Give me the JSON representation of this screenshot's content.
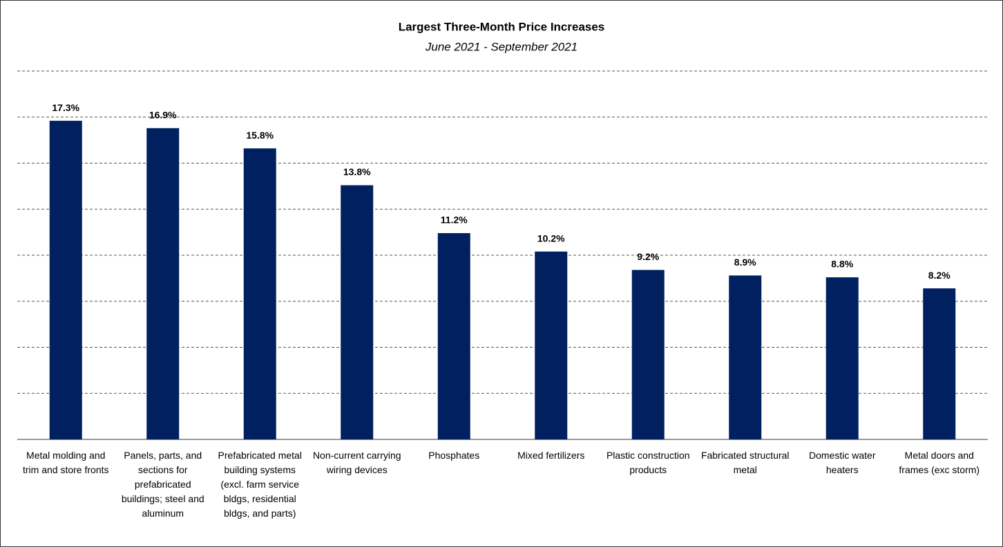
{
  "chart_data": {
    "type": "bar",
    "title": "Largest Three-Month Price Increases",
    "subtitle": "June 2021 - September 2021",
    "categories": [
      "Metal molding and trim and store fronts",
      "Panels, parts, and sections for prefabricated buildings; steel and aluminum",
      "Prefabricated metal building systems (excl. farm service bldgs, residential bldgs, and parts)",
      "Non-current carrying wiring devices",
      "Phosphates",
      "Mixed fertilizers",
      "Plastic construction products",
      "Fabricated structural metal",
      "Domestic water heaters",
      "Metal doors and frames (exc storm)"
    ],
    "values": [
      17.3,
      16.9,
      15.8,
      13.8,
      11.2,
      10.2,
      9.2,
      8.9,
      8.8,
      8.2
    ],
    "value_labels": [
      "17.3%",
      "16.9%",
      "15.8%",
      "13.8%",
      "11.2%",
      "10.2%",
      "9.2%",
      "8.9%",
      "8.8%",
      "8.2%"
    ],
    "color": "#002060",
    "ylim": [
      0,
      20
    ],
    "yticks": [
      0,
      2.5,
      5,
      7.5,
      10,
      12.5,
      15,
      17.5,
      20
    ],
    "grid": true
  }
}
